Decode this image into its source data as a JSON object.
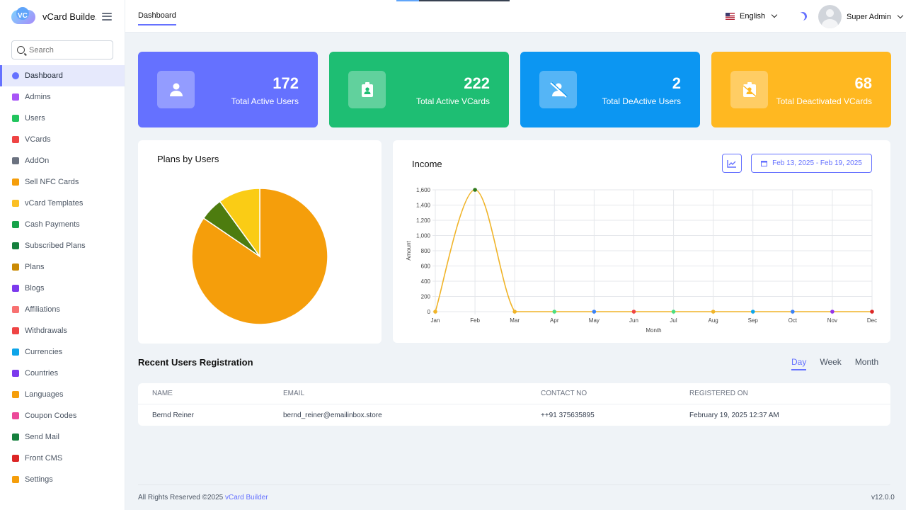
{
  "app": {
    "title": "vCard Builde...",
    "breadcrumb": "Dashboard"
  },
  "sidebar": {
    "search_placeholder": "Search",
    "items": [
      {
        "label": "Dashboard",
        "icon": "dashboard-icon",
        "color": "#6571ff",
        "active": true
      },
      {
        "label": "Admins",
        "icon": "user-shield-icon",
        "color": "#a855f7"
      },
      {
        "label": "Users",
        "icon": "users-icon",
        "color": "#22c55e"
      },
      {
        "label": "VCards",
        "icon": "id-card-icon",
        "color": "#ef4444"
      },
      {
        "label": "AddOn",
        "icon": "upload-icon",
        "color": "#6b7280"
      },
      {
        "label": "Sell NFC Cards",
        "icon": "credit-card-icon",
        "color": "#f59e0b"
      },
      {
        "label": "vCard Templates",
        "icon": "template-icon",
        "color": "#fbbf24"
      },
      {
        "label": "Cash Payments",
        "icon": "money-icon",
        "color": "#16a34a"
      },
      {
        "label": "Subscribed Plans",
        "icon": "paper-plane-icon",
        "color": "#15803d"
      },
      {
        "label": "Plans",
        "icon": "columns-icon",
        "color": "#ca8a04"
      },
      {
        "label": "Blogs",
        "icon": "book-icon",
        "color": "#7c3aed"
      },
      {
        "label": "Affiliations",
        "icon": "affiliation-icon",
        "color": "#f87171"
      },
      {
        "label": "Withdrawals",
        "icon": "withdraw-icon",
        "color": "#ef4444"
      },
      {
        "label": "Currencies",
        "icon": "dollar-icon",
        "color": "#0ea5e9"
      },
      {
        "label": "Countries",
        "icon": "globe-icon",
        "color": "#7c3aed"
      },
      {
        "label": "Languages",
        "icon": "language-icon",
        "color": "#f59e0b"
      },
      {
        "label": "Coupon Codes",
        "icon": "tag-icon",
        "color": "#ec4899"
      },
      {
        "label": "Send Mail",
        "icon": "mail-icon",
        "color": "#15803d"
      },
      {
        "label": "Front CMS",
        "icon": "home-icon",
        "color": "#dc2626"
      },
      {
        "label": "Settings",
        "icon": "gears-icon",
        "color": "#f59e0b"
      }
    ]
  },
  "topbar": {
    "language": "English",
    "user_name": "Super Admin"
  },
  "stats": [
    {
      "value": "172",
      "label": "Total Active Users",
      "color": "#6571ff",
      "icon": "user-icon"
    },
    {
      "value": "222",
      "label": "Total Active VCards",
      "color": "#1ebe73",
      "icon": "id-badge-icon"
    },
    {
      "value": "2",
      "label": "Total DeActive Users",
      "color": "#0c96f2",
      "icon": "user-slash-icon"
    },
    {
      "value": "68",
      "label": "Total Deactivated VCards",
      "color": "#ffb821",
      "icon": "id-badge-off-icon"
    }
  ],
  "plans_panel": {
    "title": "Plans by Users"
  },
  "income_panel": {
    "title": "Income",
    "date_range": "Feb 13, 2025 - Feb 19, 2025"
  },
  "chart_data": [
    {
      "type": "pie",
      "title": "Plans by Users",
      "slices": [
        {
          "value": 84.5,
          "color": "#f59e0b"
        },
        {
          "value": 5.5,
          "color": "#4d7c0f"
        },
        {
          "value": 10,
          "color": "#facc15"
        }
      ]
    },
    {
      "type": "line",
      "title": "Income",
      "xlabel": "Month",
      "ylabel": "Amount",
      "categories": [
        "Jan",
        "Feb",
        "Mar",
        "Apr",
        "May",
        "Jun",
        "Jul",
        "Aug",
        "Sep",
        "Oct",
        "Nov",
        "Dec"
      ],
      "series": [
        {
          "values": [
            0,
            1600,
            0,
            0,
            0,
            0,
            0,
            0,
            0,
            0,
            0,
            0
          ],
          "color": "#f0b429"
        }
      ],
      "point_colors": [
        "#f0b429",
        "#2f7a1a",
        "#f0b429",
        "#4ade80",
        "#3b82f6",
        "#ef4444",
        "#4ade80",
        "#f0b429",
        "#0ea5e9",
        "#3b82f6",
        "#9333ea",
        "#dc2626"
      ],
      "ylim": [
        0,
        1600
      ],
      "yticks": [
        "0",
        "200",
        "400",
        "600",
        "800",
        "1,000",
        "1,200",
        "1,400",
        "1,600"
      ],
      "grid": true
    }
  ],
  "recent": {
    "title": "Recent Users Registration",
    "periods": [
      "Day",
      "Week",
      "Month"
    ],
    "columns": [
      "NAME",
      "EMAIL",
      "CONTACT NO",
      "REGISTERED ON"
    ],
    "rows": [
      [
        "Bernd Reiner",
        "bernd_reiner@emailinbox.store",
        "++91 375635895",
        "February 19, 2025 12:37 AM"
      ]
    ]
  },
  "footer": {
    "text": "All Rights Reserved ©2025 ",
    "link": "vCard Builder",
    "version": "v12.0.0"
  }
}
